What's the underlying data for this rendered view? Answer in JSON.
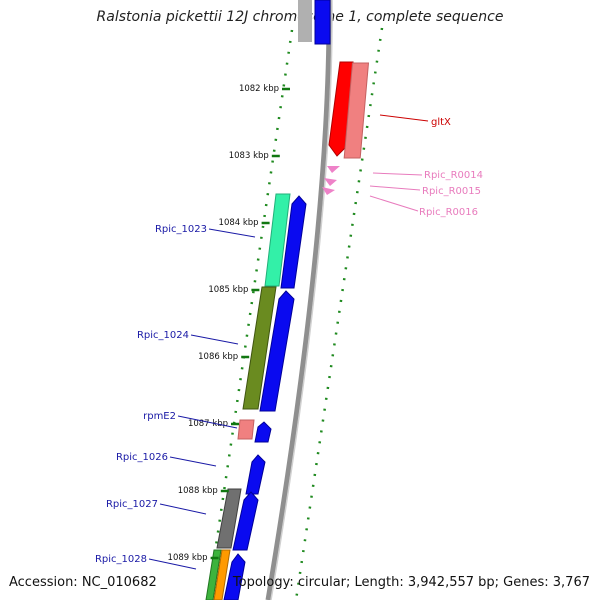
{
  "title": "Ralstonia pickettii 12J chromosome 1, complete sequence",
  "footer": {
    "accession": "Accession: NC_010682",
    "summary": "Topology: circular; Length: 3,942,557 bp; Genes: 3,767"
  },
  "ruler": {
    "ticks": [
      {
        "label": "1082 kbp",
        "kbp": 1082
      },
      {
        "label": "1083 kbp",
        "kbp": 1083
      },
      {
        "label": "1084 kbp",
        "kbp": 1084
      },
      {
        "label": "1085 kbp",
        "kbp": 1085
      },
      {
        "label": "1086 kbp",
        "kbp": 1086
      },
      {
        "label": "1087 kbp",
        "kbp": 1087
      },
      {
        "label": "1088 kbp",
        "kbp": 1088
      },
      {
        "label": "1089 kbp",
        "kbp": 1089
      }
    ]
  },
  "gene_labels": [
    {
      "name": "gltX",
      "color": "#cc0000"
    },
    {
      "name": "Rpic_R0014",
      "color": "#e87bbd"
    },
    {
      "name": "Rpic_R0015",
      "color": "#e87bbd"
    },
    {
      "name": "Rpic_R0016",
      "color": "#e87bbd"
    },
    {
      "name": "Rpic_1023",
      "color": "#1a1aa6"
    },
    {
      "name": "Rpic_1024",
      "color": "#1a1aa6"
    },
    {
      "name": "rpmE2",
      "color": "#1a1aa6"
    },
    {
      "name": "Rpic_1026",
      "color": "#1a1aa6"
    },
    {
      "name": "Rpic_1027",
      "color": "#1a1aa6"
    },
    {
      "name": "Rpic_1028",
      "color": "#1a1aa6"
    }
  ],
  "colors": {
    "cds": "#0000ff",
    "trna": "#ee82c8",
    "backbone": "#9a9a9a",
    "tick": "#117711"
  }
}
